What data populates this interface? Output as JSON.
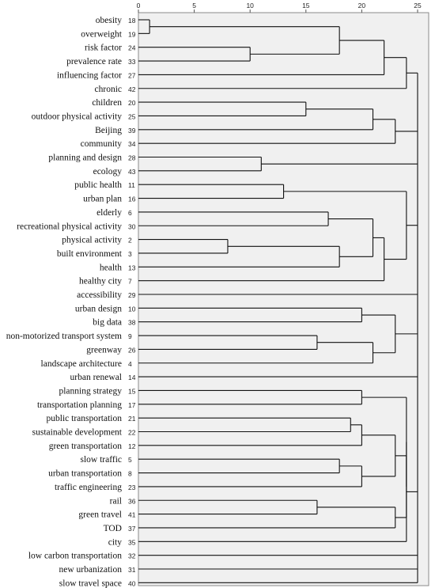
{
  "chart_data": {
    "type": "dendrogram",
    "x_axis": {
      "ticks": [
        0,
        5,
        10,
        15,
        20,
        25
      ],
      "range": [
        0,
        25
      ]
    },
    "leaves": [
      {
        "label": "obesity",
        "id": "18"
      },
      {
        "label": "overweight",
        "id": "19"
      },
      {
        "label": "risk factor",
        "id": "24"
      },
      {
        "label": "prevalence rate",
        "id": "33"
      },
      {
        "label": "influencing factor",
        "id": "27"
      },
      {
        "label": "chronic",
        "id": "42"
      },
      {
        "label": "children",
        "id": "20"
      },
      {
        "label": "outdoor physical activity",
        "id": "25"
      },
      {
        "label": "Beijing",
        "id": "39"
      },
      {
        "label": "community",
        "id": "34"
      },
      {
        "label": "planning and design",
        "id": "28"
      },
      {
        "label": "ecology",
        "id": "43"
      },
      {
        "label": "public health",
        "id": "11"
      },
      {
        "label": "urban plan",
        "id": "16"
      },
      {
        "label": "elderly",
        "id": "6"
      },
      {
        "label": "recreational physical activity",
        "id": "30"
      },
      {
        "label": "physical activity",
        "id": "2"
      },
      {
        "label": "built environment",
        "id": "3"
      },
      {
        "label": "health",
        "id": "13"
      },
      {
        "label": "healthy city",
        "id": "7"
      },
      {
        "label": "accessibility",
        "id": "29"
      },
      {
        "label": "urban design",
        "id": "10"
      },
      {
        "label": "big data",
        "id": "38"
      },
      {
        "label": "non-motorized transport system",
        "id": "9"
      },
      {
        "label": "greenway",
        "id": "26"
      },
      {
        "label": "landscape architecture",
        "id": "4"
      },
      {
        "label": "urban renewal",
        "id": "14"
      },
      {
        "label": "planning strategy",
        "id": "15"
      },
      {
        "label": "transportation planning",
        "id": "17"
      },
      {
        "label": "public transportation",
        "id": "21"
      },
      {
        "label": "sustainable development",
        "id": "22"
      },
      {
        "label": "green transportation",
        "id": "12"
      },
      {
        "label": "slow traffic",
        "id": "5"
      },
      {
        "label": "urban transportation",
        "id": "8"
      },
      {
        "label": "traffic engineering",
        "id": "23"
      },
      {
        "label": "rail",
        "id": "36"
      },
      {
        "label": "green travel",
        "id": "41"
      },
      {
        "label": "TOD",
        "id": "37"
      },
      {
        "label": "city",
        "id": "35"
      },
      {
        "label": "low carbon transportation",
        "id": "32"
      },
      {
        "label": "new urbanization",
        "id": "31"
      },
      {
        "label": "slow travel space",
        "id": "40"
      }
    ],
    "merges": [
      {
        "a": 0,
        "b": 1,
        "h": 1
      },
      {
        "a": 2,
        "b": 3,
        "h": 10
      },
      {
        "a": 0,
        "b": 2,
        "h": 18
      },
      {
        "a": 0,
        "b": 4,
        "h": 22
      },
      {
        "a": 0,
        "b": 5,
        "h": 24
      },
      {
        "a": 6,
        "b": 7,
        "h": 15
      },
      {
        "a": 6,
        "b": 8,
        "h": 21
      },
      {
        "a": 6,
        "b": 9,
        "h": 23
      },
      {
        "a": 10,
        "b": 11,
        "h": 11
      },
      {
        "a": 12,
        "b": 13,
        "h": 13
      },
      {
        "a": 14,
        "b": 15,
        "h": 17
      },
      {
        "a": 16,
        "b": 17,
        "h": 8
      },
      {
        "a": 16,
        "b": 18,
        "h": 18
      },
      {
        "a": 14,
        "b": 16,
        "h": 21
      },
      {
        "a": 14,
        "b": 19,
        "h": 22
      },
      {
        "a": 12,
        "b": 14,
        "h": 24
      },
      {
        "a": 21,
        "b": 22,
        "h": 20
      },
      {
        "a": 23,
        "b": 24,
        "h": 16
      },
      {
        "a": 23,
        "b": 25,
        "h": 21
      },
      {
        "a": 21,
        "b": 23,
        "h": 23
      },
      {
        "a": 27,
        "b": 28,
        "h": 20
      },
      {
        "a": 29,
        "b": 30,
        "h": 19
      },
      {
        "a": 29,
        "b": 31,
        "h": 20
      },
      {
        "a": 32,
        "b": 33,
        "h": 18
      },
      {
        "a": 32,
        "b": 34,
        "h": 20
      },
      {
        "a": 29,
        "b": 32,
        "h": 23
      },
      {
        "a": 35,
        "b": 36,
        "h": 16
      },
      {
        "a": 35,
        "b": 37,
        "h": 23
      },
      {
        "a": 29,
        "b": 35,
        "h": 24
      },
      {
        "a": 27,
        "b": 29,
        "h": 24
      },
      {
        "a": 27,
        "b": 38,
        "h": 24
      }
    ],
    "root_height": 25,
    "grid": false
  }
}
